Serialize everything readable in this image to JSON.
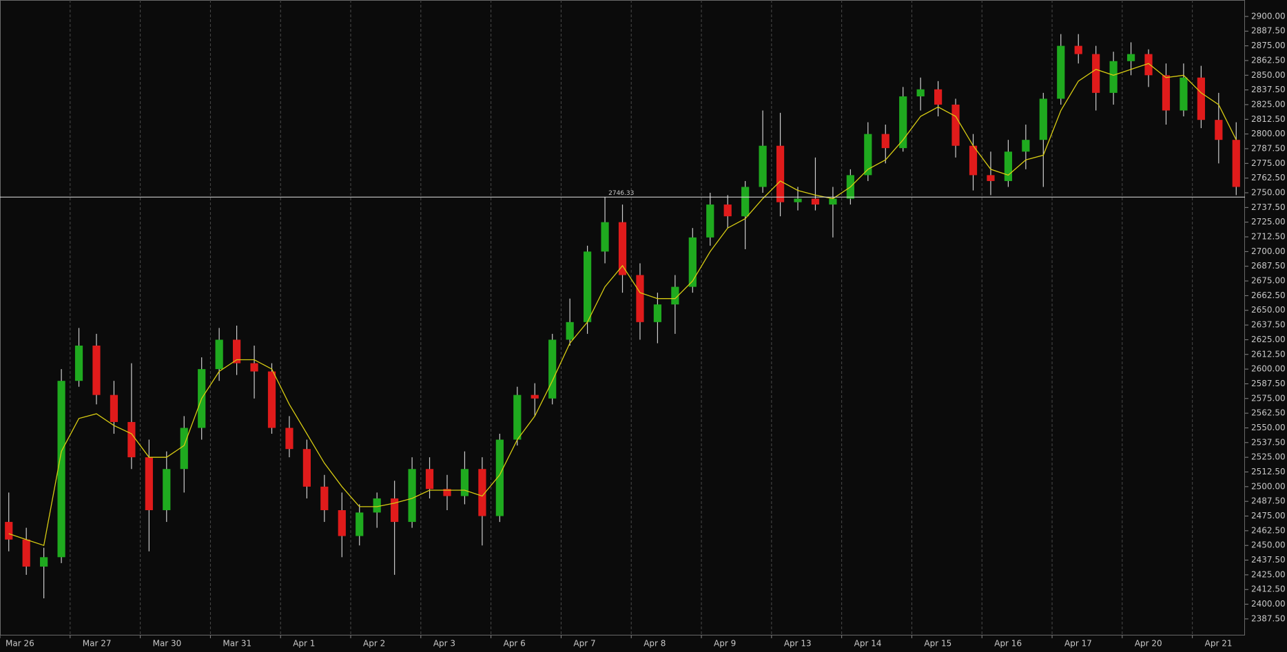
{
  "chart_data": {
    "type": "candlestick",
    "categories": [
      "Mar 26",
      null,
      null,
      null,
      "Mar 27",
      null,
      null,
      null,
      "Mar 30",
      null,
      null,
      null,
      "Mar 31",
      null,
      null,
      null,
      "Apr 1",
      null,
      null,
      null,
      "Apr 2",
      null,
      null,
      null,
      "Apr 3",
      null,
      null,
      null,
      "Apr 6",
      null,
      null,
      null,
      "Apr 7",
      null,
      null,
      null,
      "Apr 8",
      null,
      null,
      null,
      "Apr 9",
      null,
      null,
      null,
      "Apr 13",
      null,
      null,
      null,
      "Apr 14",
      null,
      null,
      null,
      "Apr 15",
      null,
      null,
      null,
      "Apr 16",
      null,
      null,
      null,
      "Apr 17",
      null,
      null,
      null,
      "Apr 20",
      null,
      null,
      null,
      "Apr 21",
      null,
      null
    ],
    "series": [
      {
        "type": "candlestick",
        "color_up": "#1faa1f",
        "color_down": "#e01b1b",
        "wick_color": "#cfcfcf",
        "open": [
          2470,
          2455,
          2432,
          2440,
          2590,
          2620,
          2578,
          2555,
          2525,
          2480,
          2515,
          2550,
          2600,
          2625,
          2605,
          2598,
          2550,
          2532,
          2500,
          2480,
          2458,
          2478,
          2490,
          2470,
          2515,
          2498,
          2492,
          2515,
          2475,
          2540,
          2578,
          2575,
          2625,
          2640,
          2700,
          2725,
          2680,
          2640,
          2655,
          2670,
          2712,
          2740,
          2730,
          2755,
          2790,
          2742,
          2745,
          2740,
          2745,
          2765,
          2800,
          2788,
          2832,
          2838,
          2825,
          2790,
          2765,
          2760,
          2785,
          2795,
          2830,
          2875,
          2868,
          2835,
          2862,
          2868,
          2850,
          2820,
          2848,
          2812,
          2795
        ],
        "high": [
          2495,
          2465,
          2448,
          2600,
          2635,
          2630,
          2590,
          2605,
          2540,
          2530,
          2560,
          2610,
          2635,
          2637,
          2620,
          2605,
          2560,
          2540,
          2510,
          2495,
          2485,
          2495,
          2505,
          2525,
          2525,
          2510,
          2530,
          2525,
          2545,
          2585,
          2588,
          2630,
          2660,
          2705,
          2746.33,
          2740,
          2690,
          2665,
          2680,
          2720,
          2750,
          2748,
          2760,
          2820,
          2818,
          2755,
          2780,
          2755,
          2770,
          2810,
          2808,
          2840,
          2848,
          2845,
          2830,
          2800,
          2785,
          2795,
          2808,
          2835,
          2885,
          2885,
          2875,
          2870,
          2878,
          2872,
          2860,
          2860,
          2858,
          2835,
          2810
        ],
        "low": [
          2445,
          2425,
          2405,
          2435,
          2585,
          2570,
          2545,
          2515,
          2445,
          2470,
          2495,
          2540,
          2590,
          2595,
          2575,
          2545,
          2525,
          2490,
          2470,
          2440,
          2450,
          2465,
          2425,
          2465,
          2490,
          2480,
          2485,
          2450,
          2470,
          2535,
          2560,
          2570,
          2620,
          2630,
          2690,
          2665,
          2625,
          2622,
          2630,
          2665,
          2705,
          2720,
          2702,
          2750,
          2730,
          2735,
          2735,
          2712,
          2740,
          2760,
          2775,
          2785,
          2820,
          2815,
          2780,
          2752,
          2748,
          2755,
          2770,
          2755,
          2825,
          2860,
          2820,
          2825,
          2850,
          2840,
          2808,
          2815,
          2805,
          2775,
          2748
        ],
        "close": [
          2455,
          2432,
          2440,
          2590,
          2620,
          2578,
          2555,
          2525,
          2480,
          2515,
          2550,
          2600,
          2625,
          2605,
          2598,
          2550,
          2532,
          2500,
          2480,
          2458,
          2478,
          2490,
          2470,
          2515,
          2498,
          2492,
          2515,
          2475,
          2540,
          2578,
          2575,
          2625,
          2640,
          2700,
          2725,
          2680,
          2640,
          2655,
          2670,
          2712,
          2740,
          2730,
          2755,
          2790,
          2742,
          2745,
          2740,
          2745,
          2765,
          2800,
          2788,
          2832,
          2838,
          2825,
          2790,
          2765,
          2760,
          2785,
          2795,
          2830,
          2875,
          2868,
          2835,
          2862,
          2868,
          2850,
          2820,
          2848,
          2812,
          2795,
          2755
        ]
      },
      {
        "type": "line",
        "color": "#d8cc12",
        "values": [
          2460,
          2455,
          2450,
          2530,
          2558,
          2562,
          2552,
          2545,
          2525,
          2525,
          2535,
          2575,
          2598,
          2608,
          2608,
          2600,
          2570,
          2545,
          2520,
          2500,
          2483,
          2483,
          2486,
          2490,
          2497,
          2497,
          2497,
          2492,
          2510,
          2540,
          2560,
          2590,
          2622,
          2640,
          2670,
          2688,
          2665,
          2660,
          2660,
          2675,
          2700,
          2720,
          2728,
          2745,
          2760,
          2752,
          2748,
          2745,
          2755,
          2770,
          2778,
          2795,
          2815,
          2823,
          2815,
          2790,
          2770,
          2765,
          2778,
          2782,
          2820,
          2845,
          2855,
          2850,
          2855,
          2860,
          2848,
          2850,
          2835,
          2825,
          2795
        ]
      }
    ],
    "price_line": 2746.33,
    "ylim": [
      2373.4,
      2914
    ],
    "yticks": [
      {
        "value": 2387.5,
        "label": "2387.50"
      },
      {
        "value": 2400,
        "label": "2400.00"
      },
      {
        "value": 2412.5,
        "label": "2412.50"
      },
      {
        "value": 2425,
        "label": "2425.00"
      },
      {
        "value": 2437.5,
        "label": "2437.50"
      },
      {
        "value": 2450,
        "label": "2450.00"
      },
      {
        "value": 2462.5,
        "label": "2462.50"
      },
      {
        "value": 2475,
        "label": "2475.00"
      },
      {
        "value": 2487.5,
        "label": "2487.50"
      },
      {
        "value": 2500,
        "label": "2500.00"
      },
      {
        "value": 2512.5,
        "label": "2512.50"
      },
      {
        "value": 2525,
        "label": "2525.00"
      },
      {
        "value": 2537.5,
        "label": "2537.50"
      },
      {
        "value": 2550,
        "label": "2550.00"
      },
      {
        "value": 2562.5,
        "label": "2562.50"
      },
      {
        "value": 2575,
        "label": "2575.00"
      },
      {
        "value": 2587.5,
        "label": "2587.50"
      },
      {
        "value": 2600,
        "label": "2600.00"
      },
      {
        "value": 2612.5,
        "label": "2612.50"
      },
      {
        "value": 2625,
        "label": "2625.00"
      },
      {
        "value": 2637.5,
        "label": "2637.50"
      },
      {
        "value": 2650,
        "label": "2650.00"
      },
      {
        "value": 2662.5,
        "label": "2662.50"
      },
      {
        "value": 2675,
        "label": "2675.00"
      },
      {
        "value": 2687.5,
        "label": "2687.50"
      },
      {
        "value": 2700,
        "label": "2700.00"
      },
      {
        "value": 2712.5,
        "label": "2712.50"
      },
      {
        "value": 2725,
        "label": "2725.00"
      },
      {
        "value": 2737.5,
        "label": "2737.50"
      },
      {
        "value": 2750,
        "label": "2750.00"
      },
      {
        "value": 2762.5,
        "label": "2762.50"
      },
      {
        "value": 2775,
        "label": "2775.00"
      },
      {
        "value": 2787.5,
        "label": "2787.50"
      },
      {
        "value": 2800,
        "label": "2800.00"
      },
      {
        "value": 2812.5,
        "label": "2812.50"
      },
      {
        "value": 2825,
        "label": "2825.00"
      },
      {
        "value": 2837.5,
        "label": "2837.50"
      },
      {
        "value": 2850,
        "label": "2850.00"
      },
      {
        "value": 2862.5,
        "label": "2862.50"
      },
      {
        "value": 2875,
        "label": "2875.00"
      },
      {
        "value": 2887.5,
        "label": "2887.50"
      },
      {
        "value": 2900,
        "label": "2900.00"
      }
    ],
    "grid": true
  }
}
